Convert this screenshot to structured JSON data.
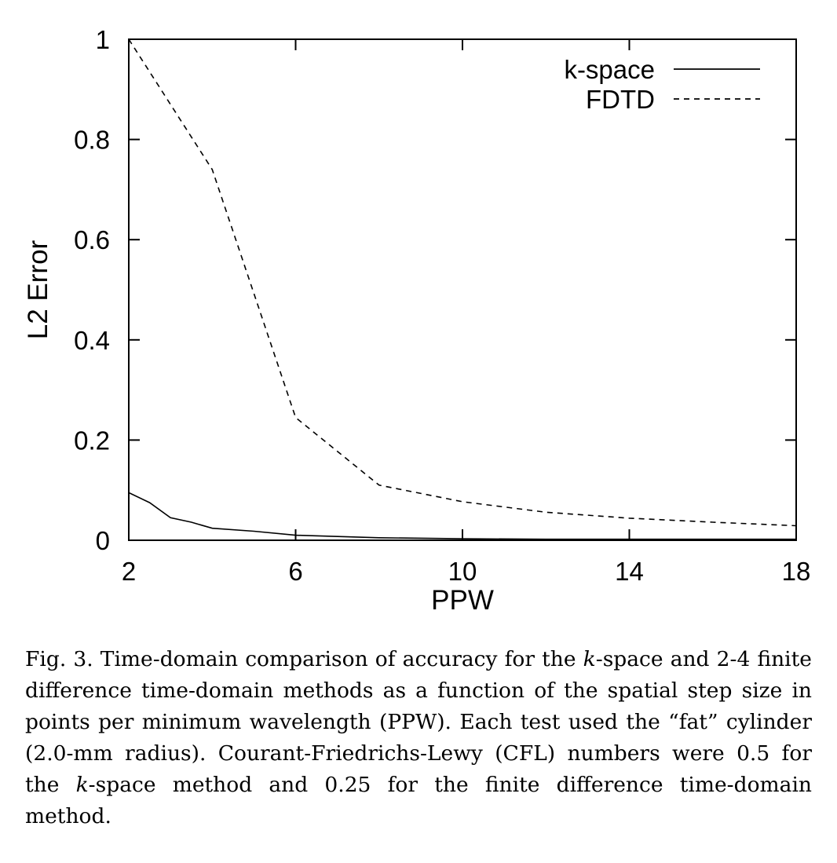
{
  "chart_data": {
    "type": "line",
    "title": "",
    "xlabel": "PPW",
    "ylabel": "L2 Error",
    "xlim": [
      2,
      18
    ],
    "ylim": [
      0,
      1
    ],
    "xticks": [
      2,
      6,
      10,
      14,
      18
    ],
    "yticks": [
      0,
      0.2,
      0.4,
      0.6,
      0.8,
      1
    ],
    "ytick_labels": [
      "0",
      "0.2",
      "0.4",
      "0.6",
      "0.8",
      "1"
    ],
    "legend_position": "top-right",
    "grid": false,
    "series": [
      {
        "name": "k-space",
        "style": "solid",
        "color": "#000000",
        "x": [
          2,
          2.5,
          3,
          3.5,
          4,
          5,
          6,
          8,
          10,
          12,
          14,
          16,
          18
        ],
        "y": [
          0.095,
          0.075,
          0.045,
          0.036,
          0.024,
          0.018,
          0.01,
          0.005,
          0.003,
          0.002,
          0.002,
          0.002,
          0.002
        ]
      },
      {
        "name": "FDTD",
        "style": "dashed",
        "color": "#000000",
        "x": [
          2,
          3,
          4,
          6,
          8,
          10,
          12,
          14,
          16,
          18
        ],
        "y": [
          1.0,
          0.87,
          0.74,
          0.245,
          0.11,
          0.077,
          0.056,
          0.044,
          0.036,
          0.029
        ]
      }
    ]
  },
  "caption": {
    "prefix": "Fig. 3. Time-domain comparison of accuracy for the ",
    "k1": "k",
    "mid1": "-space and 2-4 finite difference time-domain methods as a function of the spatial step size in points per minimum wavelength (PPW). Each test used the “fat” cylinder (2.0-mm radius). Courant-Friedrichs-Lewy (CFL) numbers were 0.5 for the ",
    "k2": "k",
    "mid2": "-space method and 0.25 for the finite difference time-domain method."
  }
}
